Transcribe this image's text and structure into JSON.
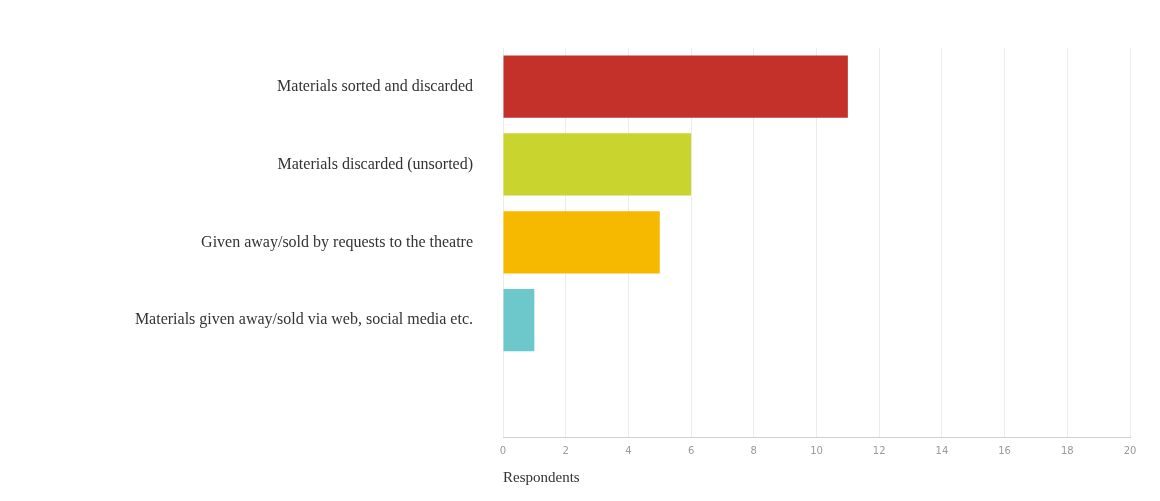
{
  "chart_data": {
    "type": "bar",
    "orientation": "horizontal",
    "xlabel": "Respondents",
    "categories": [
      "Materials sorted and discarded",
      "Materials discarded (unsorted)",
      "Given away/sold by requests to the theatre",
      "Materials given away/sold via web, social media etc.",
      null
    ],
    "values": [
      11,
      6,
      5,
      1,
      null
    ],
    "colors": [
      "#c3312a",
      "#c9d42f",
      "#f6b900",
      "#6cc8ca",
      null
    ],
    "xlim": [
      0,
      20
    ],
    "xticks": [
      0,
      2,
      4,
      6,
      8,
      10,
      12,
      14,
      16,
      18,
      20
    ],
    "grid": "x",
    "legend": false
  }
}
